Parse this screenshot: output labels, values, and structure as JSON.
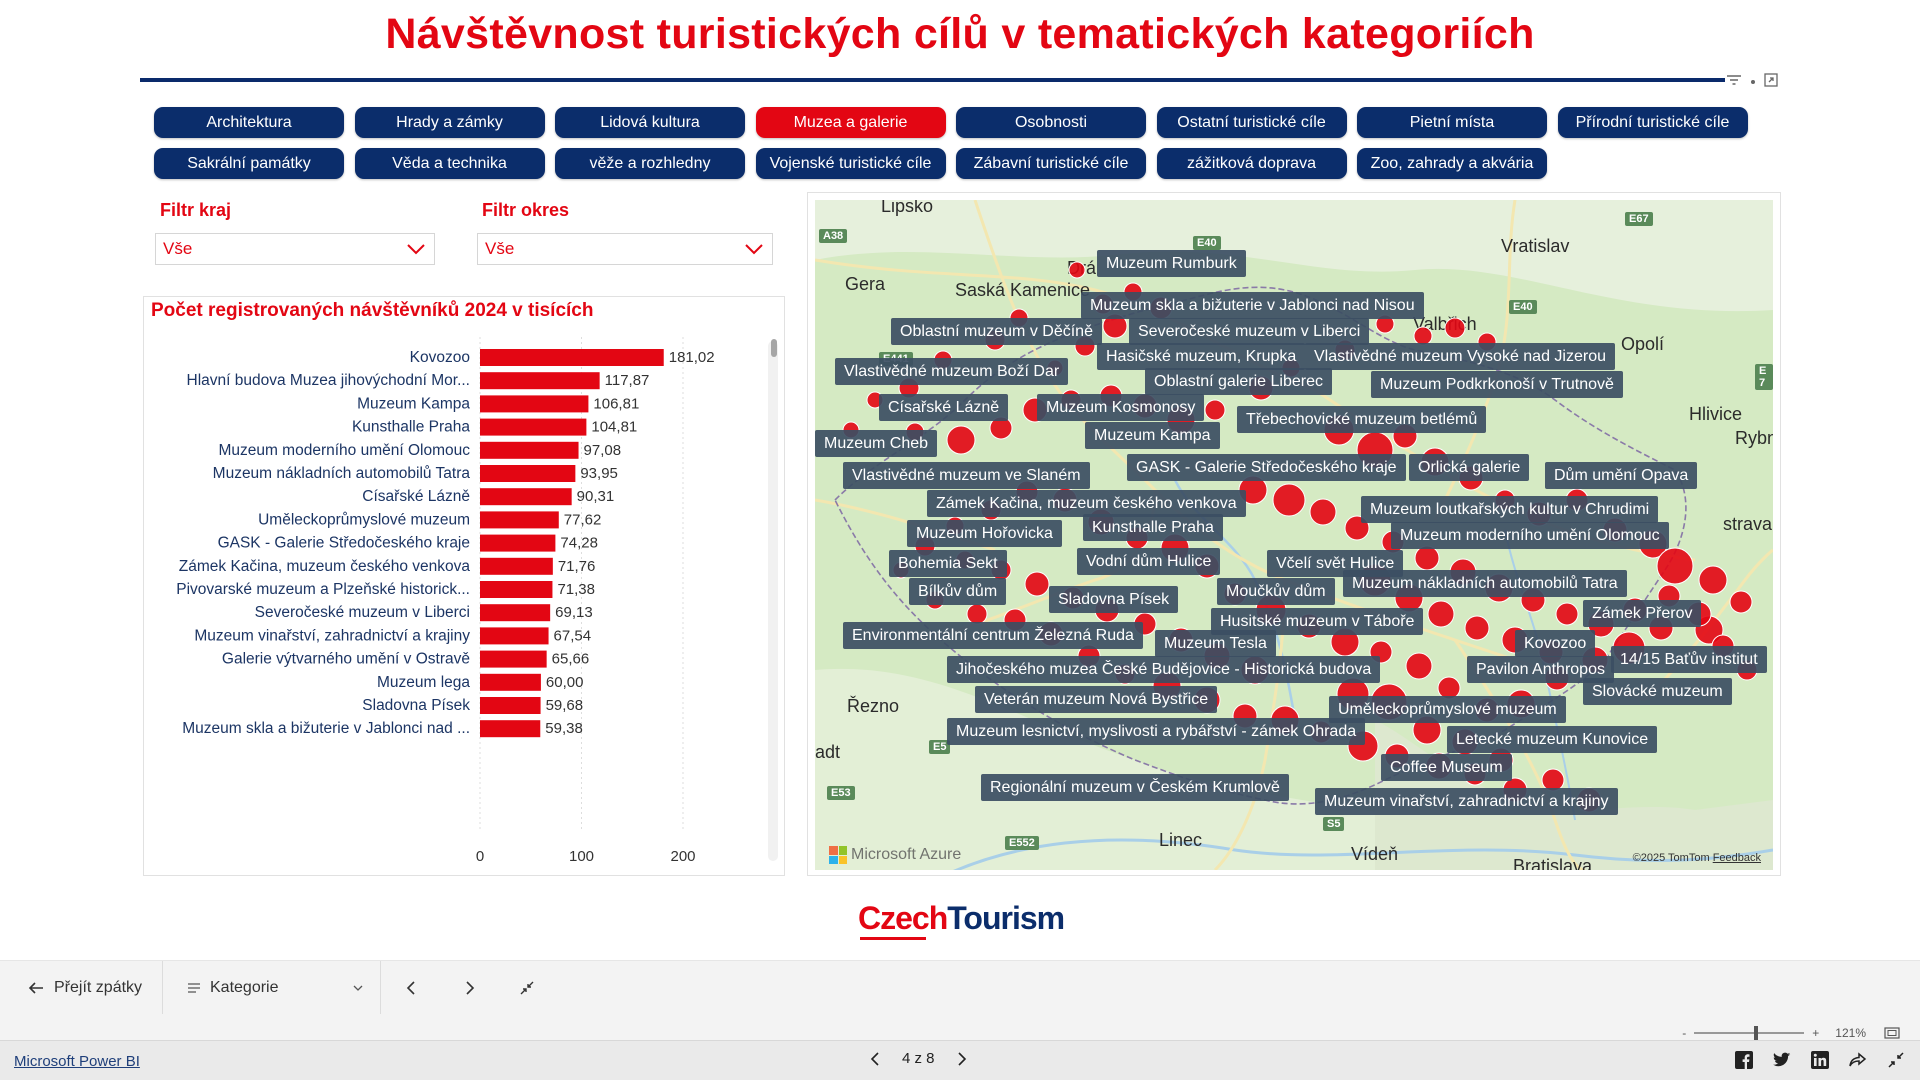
{
  "title": "Návštěvnost turistických cílů v tematických kategoriích",
  "categories": [
    {
      "label": "Architektura",
      "active": false
    },
    {
      "label": "Hrady a zámky",
      "active": false
    },
    {
      "label": "Lidová kultura",
      "active": false
    },
    {
      "label": "Muzea a galerie",
      "active": true
    },
    {
      "label": "Osobnosti",
      "active": false
    },
    {
      "label": "Ostatní turistické cíle",
      "active": false
    },
    {
      "label": "Pietní místa",
      "active": false
    },
    {
      "label": "Přírodní turistické cíle",
      "active": false
    },
    {
      "label": "Sakrální památky",
      "active": false
    },
    {
      "label": "Věda a technika",
      "active": false
    },
    {
      "label": "věže a rozhledny",
      "active": false
    },
    {
      "label": "Vojenské turistické cíle",
      "active": false
    },
    {
      "label": "Zábavní turistické cíle",
      "active": false
    },
    {
      "label": "zážitková doprava",
      "active": false
    },
    {
      "label": "Zoo, zahrady a akvária",
      "active": false
    }
  ],
  "filters": {
    "kraj": {
      "label": "Filtr kraj",
      "value": "Vše"
    },
    "okres": {
      "label": "Filtr okres",
      "value": "Vše"
    }
  },
  "chart_data": {
    "type": "bar",
    "orientation": "horizontal",
    "title": "Počet registrovaných návštěvníků 2024 v tisících",
    "categories": [
      "Kovozoo",
      "Hlavní budova Muzea jihovýchodní Mor...",
      "Muzeum Kampa",
      "Kunsthalle Praha",
      "Muzeum moderního umění Olomouc",
      "Muzeum nákladních automobilů Tatra",
      "Císařské Lázně",
      "Uměleckoprůmyslové muzeum",
      "GASK - Galerie Středočeského kraje",
      "Zámek Kačina, muzeum českého venkova",
      "Pivovarské muzeum a Plzeňské historick...",
      "Severočeské muzeum v Liberci",
      "Muzeum vinařství, zahradnictví a krajiny",
      "Galerie výtvarného umění v Ostravě",
      "Muzeum lega",
      "Sladovna Písek",
      "Muzeum skla a bižuterie v Jablonci nad ..."
    ],
    "values": [
      181.02,
      117.87,
      106.81,
      104.81,
      97.08,
      93.95,
      90.31,
      77.62,
      74.28,
      71.76,
      71.38,
      69.13,
      67.54,
      65.66,
      60.0,
      59.68,
      59.38
    ],
    "value_labels": [
      "181,02",
      "117,87",
      "106,81",
      "104,81",
      "97,08",
      "93,95",
      "90,31",
      "77,62",
      "74,28",
      "71,76",
      "71,38",
      "69,13",
      "67,54",
      "65,66",
      "60,00",
      "59,68",
      "59,38"
    ],
    "x_ticks": [
      "0",
      "100",
      "200"
    ],
    "xlim": [
      0,
      200
    ],
    "bar_color": "#e30613",
    "grid": true
  },
  "map": {
    "cities": [
      "Lipsko",
      "Vratislav",
      "Gera",
      "Saská Kamenice",
      "Drá",
      "Valbřich",
      "Opolí",
      "Hlivice",
      "Rybnik",
      "strava",
      "Řezno",
      "adt",
      "Linec",
      "Vídeň",
      "Bratislava"
    ],
    "roads": [
      "A38",
      "E40",
      "E40",
      "E67",
      "E 7",
      "E441",
      "E53",
      "E552",
      "S5",
      "E5"
    ],
    "labels": [
      "Muzeum Rumburk",
      "Muzeum skla a bižuterie v Jablonci nad Nisou",
      "Oblastní muzeum v Děčíně",
      "Severočeské muzeum v Liberci",
      "Hasičské muzeum, Krupka",
      "Vlastivědné muzeum Vysoké nad Jizerou",
      "Vlastivědné muzeum Boží Dar",
      "Oblastní galerie Liberec",
      "Muzeum Podkrkonoší v Trutnově",
      "Císařské Lázně",
      "Muzeum Kosmonosy",
      "Třebechovické muzeum betlémů",
      "Muzeum Cheb",
      "Muzeum Kampa",
      "Vlastivědné muzeum ve Slaném",
      "GASK - Galerie Středočeského kraje",
      "Orlická galerie",
      "Dům umění Opava",
      "Zámek Kačina, muzeum českého venkova",
      "Muzeum loutkařských kultur v Chrudimi",
      "Muzeum Hořovicka",
      "Kunsthalle Praha",
      "Muzeum moderního umění Olomouc",
      "Bohemia Sekt",
      "Vodní dům Hulice",
      "Včelí svět Hulice",
      "Bílkův dům",
      "Sladovna Písek",
      "Moučkův dům",
      "Muzeum nákladních automobilů Tatra",
      "Zámek Přerov",
      "Husitské muzeum v Táboře",
      "Environmentální centrum Železná Ruda",
      "Muzeum Tesla",
      "Kovozoo",
      "Jihočeského muzea České Budějovice - Historická budova",
      "Pavilon Anthropos",
      "14/15 Baťův institut",
      "Veterán muzeum Nová Bystřice",
      "Slovácké muzeum",
      "Uměleckoprůmyslové muzeum",
      "Muzeum lesnictví, myslivosti a rybářství - zámek Ohrada",
      "Letecké muzeum Kunovice",
      "Coffee Museum",
      "Regionální muzeum v Českém Krumlově",
      "Muzeum vinařství, zahradnictví a krajiny"
    ],
    "provider": "Microsoft Azure",
    "credit": "©2025 TomTom",
    "feedback": "Feedback",
    "marker_color": "#e30613"
  },
  "logo": {
    "czech": "Czech",
    "tourism": "Tourism"
  },
  "nav": {
    "back_label": "Přejít zpátky",
    "bookmark_label": "Kategorie",
    "zoom": "121%"
  },
  "footer": {
    "powerbi_link": "Microsoft Power BI",
    "page": "4 z 8"
  }
}
